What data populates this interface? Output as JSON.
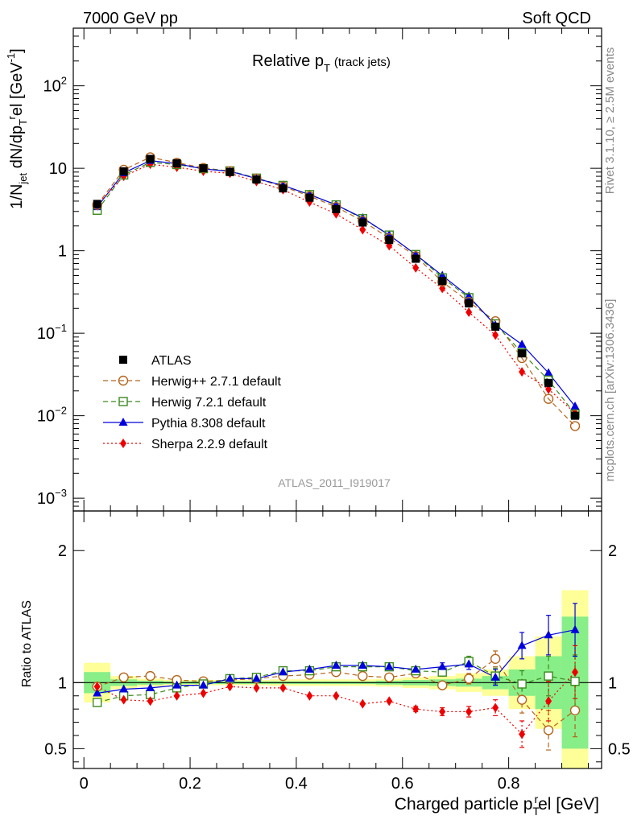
{
  "header": {
    "left": "7000 GeV pp",
    "right": "Soft QCD"
  },
  "side_labels": {
    "rivet": "Rivet 3.1.10, ≥ 2.5M events",
    "mcplots": "mcplots.cern.ch [arXiv:1306.3436]"
  },
  "colors": {
    "atlas": "#000000",
    "herwigpp": "#b5651d",
    "herwig7": "#3a8a1e",
    "pythia": "#0000dd",
    "sherpa": "#ee0000",
    "band_yellow": "#ffff99",
    "band_green": "#88ee88",
    "analysis_id": "#999999"
  },
  "chart_data": [
    {
      "type": "line",
      "panel": "main",
      "title": "Relative p",
      "title_sub": "T",
      "title_suffix": "(track jets)",
      "ylabel": "1/N_jet dN/dp_T^rel [GeV^-1]",
      "yscale": "log",
      "ylim": [
        0.0007,
        500
      ],
      "xlim": [
        -0.02,
        0.975
      ],
      "y_ticks": [
        {
          "value": 100,
          "base": "10",
          "exp": "2"
        },
        {
          "value": 10,
          "label": "10"
        },
        {
          "value": 1,
          "label": "1"
        },
        {
          "value": 0.1,
          "base": "10",
          "exp": "−1"
        },
        {
          "value": 0.01,
          "base": "10",
          "exp": "−2"
        },
        {
          "value": 0.001,
          "base": "10",
          "exp": "−3"
        }
      ],
      "analysis_id": "ATLAS_2011_I919017",
      "x": [
        0.025,
        0.075,
        0.125,
        0.175,
        0.225,
        0.275,
        0.325,
        0.375,
        0.425,
        0.475,
        0.525,
        0.575,
        0.625,
        0.675,
        0.725,
        0.775,
        0.825,
        0.875,
        0.925
      ],
      "series": [
        {
          "name": "ATLAS",
          "key": "atlas",
          "marker": "square",
          "line": "none",
          "values": [
            3.7,
            9.2,
            13.0,
            11.5,
            10.0,
            9.0,
            7.3,
            5.7,
            4.4,
            3.2,
            2.2,
            1.35,
            0.8,
            0.43,
            0.23,
            0.12,
            0.057,
            0.025,
            0.01
          ]
        },
        {
          "name": "Herwig++ 2.7.1 default",
          "key": "herwigpp",
          "marker": "circle",
          "line": "dashed",
          "values": [
            3.6,
            9.6,
            13.6,
            11.7,
            10.1,
            9.2,
            7.5,
            6.0,
            4.6,
            3.4,
            2.3,
            1.42,
            0.86,
            0.42,
            0.24,
            0.14,
            0.05,
            0.016,
            0.0075
          ]
        },
        {
          "name": "Herwig 7.2.1 default",
          "key": "herwig7",
          "marker": "square-open",
          "line": "dashed",
          "values": [
            3.1,
            8.3,
            11.8,
            11.1,
            9.9,
            9.3,
            7.6,
            6.2,
            4.8,
            3.6,
            2.45,
            1.55,
            0.9,
            0.47,
            0.27,
            0.13,
            0.058,
            0.027,
            0.0105
          ]
        },
        {
          "name": "Pythia 8.308 default",
          "key": "pythia",
          "marker": "triangle",
          "line": "solid",
          "values": [
            3.4,
            8.8,
            12.4,
            11.4,
            9.8,
            9.2,
            7.5,
            6.2,
            4.8,
            3.6,
            2.5,
            1.55,
            0.9,
            0.5,
            0.28,
            0.125,
            0.073,
            0.033,
            0.013
          ]
        },
        {
          "name": "Sherpa 2.2.9 default",
          "key": "sherpa",
          "marker": "diamond",
          "line": "dotted",
          "values": [
            3.6,
            8.0,
            11.2,
            10.3,
            9.2,
            8.7,
            6.9,
            5.5,
            3.9,
            2.8,
            1.8,
            1.15,
            0.62,
            0.35,
            0.18,
            0.095,
            0.034,
            0.021,
            0.0108
          ]
        }
      ]
    },
    {
      "type": "line",
      "panel": "ratio",
      "ylabel": "Ratio to ATLAS",
      "xlabel": "Charged particle p_T^rel [GeV]",
      "ylim": [
        0.35,
        2.3
      ],
      "xlim": [
        -0.02,
        0.975
      ],
      "y_ticks": [
        0.5,
        1,
        2
      ],
      "y_tick_labels": [
        "0.5",
        "1",
        "2"
      ],
      "x_ticks": [
        0,
        0.2,
        0.4,
        0.6,
        0.8
      ],
      "x_tick_labels": [
        "0",
        "0.2",
        "0.4",
        "0.6",
        "0.8"
      ],
      "x": [
        0.025,
        0.075,
        0.125,
        0.175,
        0.225,
        0.275,
        0.325,
        0.375,
        0.425,
        0.475,
        0.525,
        0.575,
        0.625,
        0.675,
        0.725,
        0.775,
        0.825,
        0.875,
        0.925
      ],
      "bands": {
        "bins_low": [
          0.0,
          0.05,
          0.1,
          0.15,
          0.2,
          0.25,
          0.3,
          0.35,
          0.4,
          0.45,
          0.5,
          0.55,
          0.6,
          0.65,
          0.7,
          0.75,
          0.8,
          0.85,
          0.9
        ],
        "bins_high": [
          0.05,
          0.1,
          0.15,
          0.2,
          0.25,
          0.3,
          0.35,
          0.4,
          0.45,
          0.5,
          0.55,
          0.6,
          0.65,
          0.7,
          0.75,
          0.8,
          0.85,
          0.9,
          0.95
        ],
        "yellow_half_width": [
          0.15,
          0.05,
          0.03,
          0.02,
          0.02,
          0.02,
          0.02,
          0.025,
          0.025,
          0.025,
          0.025,
          0.03,
          0.04,
          0.05,
          0.07,
          0.1,
          0.2,
          0.35,
          0.7
        ],
        "green_half_width": [
          0.08,
          0.025,
          0.015,
          0.01,
          0.01,
          0.01,
          0.01,
          0.01,
          0.01,
          0.01,
          0.01,
          0.015,
          0.02,
          0.025,
          0.03,
          0.05,
          0.1,
          0.2,
          0.5
        ]
      },
      "series": [
        {
          "name": "Herwig++ 2.7.1 default",
          "key": "herwigpp",
          "marker": "circle",
          "line": "dashed",
          "values": [
            0.97,
            1.04,
            1.05,
            1.02,
            1.01,
            1.02,
            1.03,
            1.05,
            1.06,
            1.08,
            1.05,
            1.04,
            1.07,
            0.98,
            1.03,
            1.18,
            0.87,
            0.64,
            0.79
          ],
          "errors": [
            0.01,
            0.01,
            0.01,
            0.01,
            0.01,
            0.01,
            0.01,
            0.01,
            0.01,
            0.01,
            0.01,
            0.01,
            0.02,
            0.03,
            0.04,
            0.06,
            0.1,
            0.15,
            0.2
          ]
        },
        {
          "name": "Herwig 7.2.1 default",
          "key": "herwig7",
          "marker": "square-open",
          "line": "dashed",
          "values": [
            0.85,
            0.9,
            0.91,
            0.96,
            0.99,
            1.03,
            1.04,
            1.09,
            1.09,
            1.12,
            1.12,
            1.12,
            1.09,
            1.08,
            1.16,
            1.05,
            0.99,
            1.05,
            1.01
          ],
          "errors": [
            0.01,
            0.01,
            0.01,
            0.01,
            0.01,
            0.01,
            0.01,
            0.01,
            0.01,
            0.01,
            0.01,
            0.01,
            0.02,
            0.03,
            0.04,
            0.06,
            0.1,
            0.15,
            0.2
          ]
        },
        {
          "name": "Pythia 8.308 default",
          "key": "pythia",
          "marker": "triangle",
          "line": "solid",
          "values": [
            0.92,
            0.95,
            0.96,
            0.98,
            0.98,
            1.03,
            1.03,
            1.08,
            1.1,
            1.13,
            1.13,
            1.12,
            1.1,
            1.12,
            1.14,
            1.04,
            1.28,
            1.36,
            1.4
          ],
          "errors": [
            0.01,
            0.01,
            0.01,
            0.01,
            0.01,
            0.01,
            0.01,
            0.01,
            0.01,
            0.01,
            0.01,
            0.01,
            0.02,
            0.03,
            0.04,
            0.06,
            0.1,
            0.15,
            0.2
          ]
        },
        {
          "name": "Sherpa 2.2.9 default",
          "key": "sherpa",
          "marker": "diamond",
          "line": "dotted",
          "values": [
            0.97,
            0.87,
            0.86,
            0.9,
            0.92,
            0.97,
            0.96,
            0.96,
            0.9,
            0.9,
            0.84,
            0.86,
            0.8,
            0.78,
            0.78,
            0.81,
            0.61,
            0.86,
            1.08
          ],
          "errors": [
            0.01,
            0.01,
            0.01,
            0.01,
            0.01,
            0.01,
            0.01,
            0.01,
            0.01,
            0.01,
            0.01,
            0.01,
            0.02,
            0.03,
            0.04,
            0.06,
            0.1,
            0.15,
            0.2
          ]
        }
      ]
    }
  ]
}
